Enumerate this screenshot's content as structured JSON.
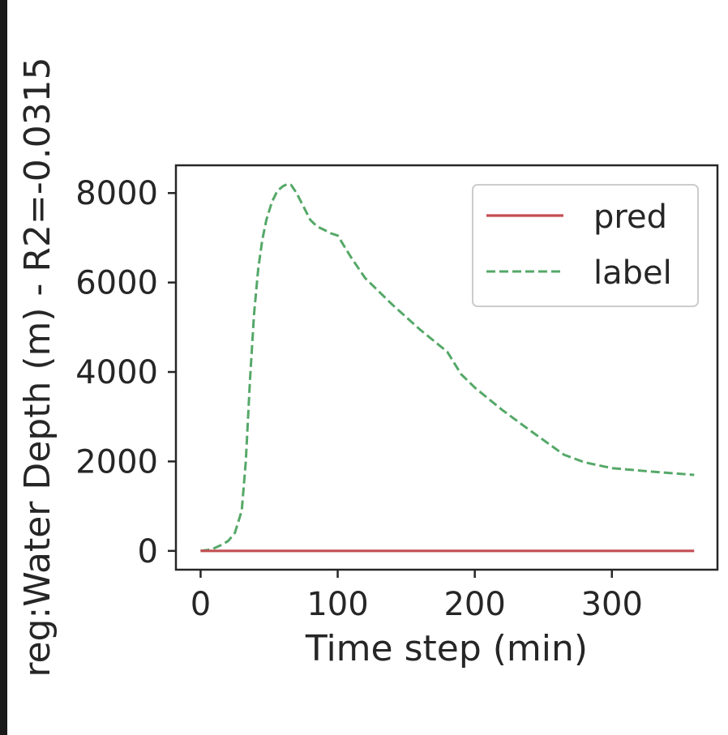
{
  "colors": {
    "pred": "#c44e52",
    "label": "#55a868"
  },
  "chart_data": {
    "type": "line",
    "xlabel": "Time step (min)",
    "ylabel": "reg:Water Depth (m) - R2=-0.0315",
    "xlim": [
      -18,
      377
    ],
    "ylim": [
      -420,
      8620
    ],
    "xticks": [
      0,
      100,
      200,
      300
    ],
    "yticks": [
      0,
      2000,
      4000,
      6000,
      8000
    ],
    "grid": false,
    "legend": {
      "position": "top-right",
      "entries": [
        "pred",
        "label"
      ]
    },
    "series": [
      {
        "name": "pred",
        "style": "solid",
        "x": [
          0,
          360
        ],
        "y": [
          0,
          0
        ]
      },
      {
        "name": "label",
        "style": "dashed",
        "x": [
          0,
          5,
          10,
          15,
          20,
          25,
          30,
          33,
          36,
          39,
          42,
          45,
          48,
          52,
          56,
          60,
          63,
          66,
          70,
          75,
          80,
          85,
          90,
          95,
          100,
          105,
          110,
          120,
          140,
          160,
          180,
          190,
          200,
          220,
          240,
          265,
          280,
          300,
          330,
          360
        ],
        "y": [
          0,
          20,
          60,
          130,
          220,
          400,
          900,
          2000,
          3800,
          5300,
          6300,
          6950,
          7400,
          7800,
          8050,
          8150,
          8200,
          8180,
          8000,
          7700,
          7400,
          7250,
          7180,
          7100,
          7050,
          6800,
          6550,
          6100,
          5500,
          4950,
          4450,
          3950,
          3650,
          3150,
          2700,
          2150,
          1980,
          1850,
          1770,
          1700
        ]
      }
    ]
  }
}
